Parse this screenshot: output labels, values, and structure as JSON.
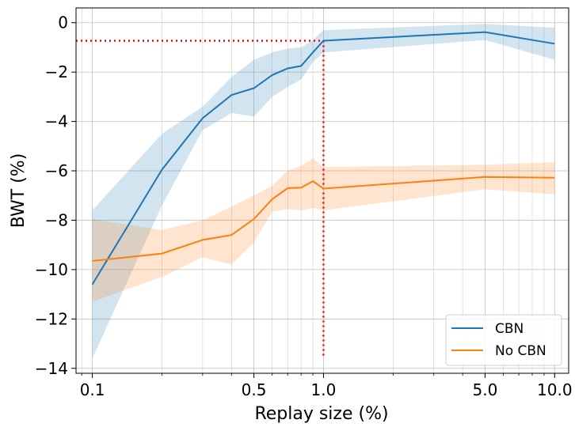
{
  "chart_data": {
    "type": "line",
    "xscale": "log",
    "xlabel": "Replay size (%)",
    "ylabel": "BWT (%)",
    "xlim": [
      0.085,
      11.5
    ],
    "ylim": [
      -14.2,
      0.6
    ],
    "grid": true,
    "legend_position": "lower-right",
    "xticks": [
      {
        "value": 0.1,
        "label": "0.1"
      },
      {
        "value": 0.5,
        "label": "0.5"
      },
      {
        "value": 1.0,
        "label": "1.0"
      },
      {
        "value": 5.0,
        "label": "5.0"
      },
      {
        "value": 10.0,
        "label": "10.0"
      }
    ],
    "yticks": [
      {
        "value": 0,
        "label": "0"
      },
      {
        "value": -2,
        "label": "−2"
      },
      {
        "value": -4,
        "label": "−4"
      },
      {
        "value": -6,
        "label": "−6"
      },
      {
        "value": -8,
        "label": "−8"
      },
      {
        "value": -10,
        "label": "−10"
      },
      {
        "value": -12,
        "label": "−12"
      },
      {
        "value": -14,
        "label": "−14"
      }
    ],
    "series": [
      {
        "name": "CBN",
        "color": "#1f77b4",
        "x": [
          0.1,
          0.2,
          0.3,
          0.4,
          0.5,
          0.6,
          0.7,
          0.8,
          0.9,
          1.0,
          5.0,
          10.0
        ],
        "values": [
          -10.6,
          -5.95,
          -3.87,
          -2.93,
          -2.65,
          -2.12,
          -1.85,
          -1.75,
          -1.2,
          -0.73,
          -0.38,
          -0.85
        ],
        "lower": [
          -13.6,
          -7.4,
          -4.35,
          -3.65,
          -3.8,
          -3.0,
          -2.6,
          -2.3,
          -1.6,
          -1.2,
          -0.7,
          -1.5
        ],
        "upper": [
          -7.6,
          -4.5,
          -3.4,
          -2.2,
          -1.5,
          -1.2,
          -1.05,
          -1.0,
          -0.7,
          -0.3,
          -0.05,
          -0.2
        ]
      },
      {
        "name": "No CBN",
        "color": "#ff7f0e",
        "x": [
          0.1,
          0.2,
          0.3,
          0.4,
          0.5,
          0.6,
          0.7,
          0.8,
          0.9,
          1.0,
          5.0,
          10.0
        ],
        "values": [
          -9.65,
          -9.35,
          -8.8,
          -8.6,
          -7.95,
          -7.15,
          -6.7,
          -6.68,
          -6.42,
          -6.72,
          -6.25,
          -6.28
        ],
        "lower": [
          -11.3,
          -10.3,
          -9.5,
          -9.8,
          -8.9,
          -7.65,
          -7.55,
          -7.6,
          -7.5,
          -7.6,
          -6.75,
          -6.95
        ],
        "upper": [
          -7.95,
          -8.4,
          -8.0,
          -7.45,
          -7.0,
          -6.6,
          -6.0,
          -5.8,
          -5.5,
          -5.85,
          -5.75,
          -5.65
        ]
      }
    ],
    "reference_lines": {
      "color": "#ff0000",
      "horizontal_y": -0.73,
      "vertical_x": 1.0,
      "vertical_y_range": [
        -13.6,
        -0.73
      ]
    }
  }
}
